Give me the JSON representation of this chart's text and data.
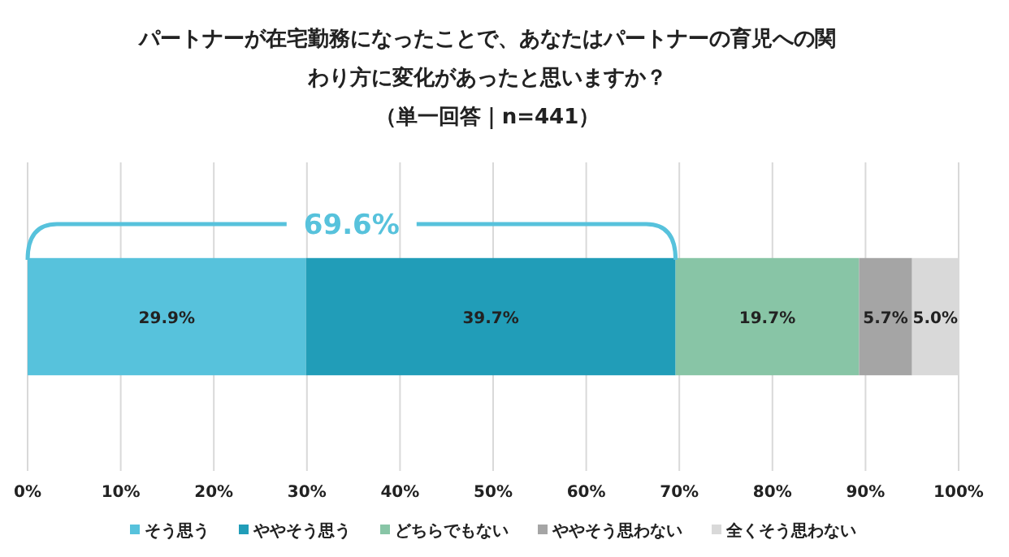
{
  "chart_data": {
    "type": "bar",
    "orientation": "horizontal",
    "stacked": true,
    "title": "パートナーが在宅勤務になったことで、あなたはパートナーの育児への関わり方に変化があったと思いますか？",
    "subtitle": "（単一回答｜n=441）",
    "categories": [
      null
    ],
    "series": [
      {
        "name": "そう思う",
        "color": "#57c2dc",
        "values": [
          29.9
        ],
        "value_labels": [
          "29.9%"
        ]
      },
      {
        "name": "ややそう思う",
        "color": "#219db8",
        "values": [
          39.7
        ],
        "value_labels": [
          "39.7%"
        ]
      },
      {
        "name": "どちらでもない",
        "color": "#88c5a6",
        "values": [
          19.7
        ],
        "value_labels": [
          "19.7%"
        ]
      },
      {
        "name": "ややそう思わない",
        "color": "#a5a5a5",
        "values": [
          5.7
        ],
        "value_labels": [
          "5.7%"
        ]
      },
      {
        "name": "全くそう思わない",
        "color": "#d9d9d9",
        "values": [
          5.0
        ],
        "value_labels": [
          "5.0%"
        ]
      }
    ],
    "annotations": [
      "69.6%"
    ],
    "xlim": [
      0,
      100
    ],
    "xticks": [
      {
        "value": 0,
        "label": "0%"
      },
      {
        "value": 10,
        "label": "10%"
      },
      {
        "value": 20,
        "label": "20%"
      },
      {
        "value": 30,
        "label": "30%"
      },
      {
        "value": 40,
        "label": "40%"
      },
      {
        "value": 50,
        "label": "50%"
      },
      {
        "value": 60,
        "label": "60%"
      },
      {
        "value": 70,
        "label": "70%"
      },
      {
        "value": 80,
        "label": "80%"
      },
      {
        "value": 90,
        "label": "90%"
      },
      {
        "value": 100,
        "label": "100%"
      }
    ],
    "grid": "x",
    "legend": "bottom"
  }
}
